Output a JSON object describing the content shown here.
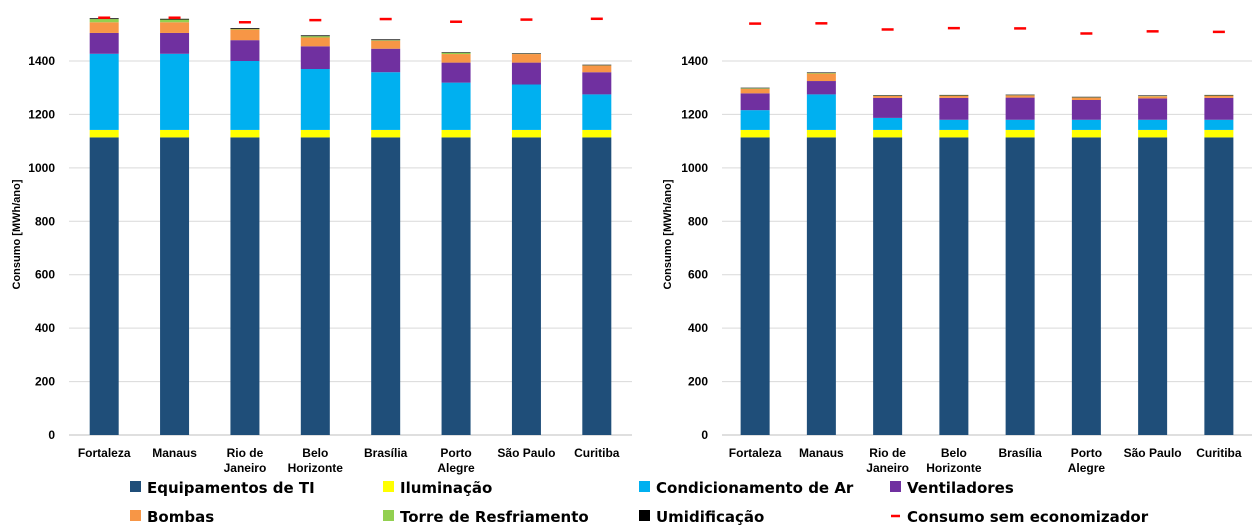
{
  "chart_data": [
    {
      "type": "bar",
      "stacked": true,
      "ylabel": "Consumo [MWh/ano]",
      "ylim": [
        0,
        1500
      ],
      "yticks": [
        0,
        200,
        400,
        600,
        800,
        1000,
        1200,
        1400
      ],
      "grid": true,
      "categories": [
        [
          "Fortaleza"
        ],
        [
          "Manaus"
        ],
        [
          "Rio de",
          "Janeiro"
        ],
        [
          "Belo",
          "Horizonte"
        ],
        [
          "Brasília"
        ],
        [
          "Porto",
          "Alegre"
        ],
        [
          "São Paulo"
        ],
        [
          "Curitiba"
        ]
      ],
      "series": [
        {
          "name": "Equipamentos de TI",
          "values": [
            1114,
            1114,
            1114,
            1114,
            1114,
            1114,
            1114,
            1114
          ]
        },
        {
          "name": "Iluminação",
          "values": [
            28,
            28,
            28,
            28,
            28,
            28,
            28,
            28
          ]
        },
        {
          "name": "Condicionamento de Ar",
          "values": [
            285,
            285,
            258,
            228,
            216,
            177,
            170,
            133
          ]
        },
        {
          "name": "Ventiladores",
          "values": [
            78,
            78,
            78,
            85,
            88,
            75,
            82,
            83
          ]
        },
        {
          "name": "Bombas",
          "values": [
            40,
            40,
            40,
            33,
            30,
            32,
            32,
            25
          ]
        },
        {
          "name": "Torre de Resfriamento",
          "values": [
            12,
            10,
            2,
            5,
            2,
            5,
            1,
            1
          ]
        },
        {
          "name": "Umidificação",
          "values": [
            3,
            3,
            3,
            3,
            3,
            2,
            2,
            2
          ]
        }
      ],
      "line_markers": {
        "name": "Consumo sem economizador",
        "values": [
          1562,
          1562,
          1545,
          1553,
          1557,
          1547,
          1555,
          1558
        ]
      }
    },
    {
      "type": "bar",
      "stacked": true,
      "ylabel": "Consumo [MWh/ano]",
      "ylim": [
        0,
        1500
      ],
      "yticks": [
        0,
        200,
        400,
        600,
        800,
        1000,
        1200,
        1400
      ],
      "grid": true,
      "categories": [
        [
          "Fortaleza"
        ],
        [
          "Manaus"
        ],
        [
          "Rio de",
          "Janeiro"
        ],
        [
          "Belo",
          "Horizonte"
        ],
        [
          "Brasília"
        ],
        [
          "Porto",
          "Alegre"
        ],
        [
          "São Paulo"
        ],
        [
          "Curitiba"
        ]
      ],
      "series": [
        {
          "name": "Equipamentos de TI",
          "values": [
            1114,
            1114,
            1114,
            1114,
            1114,
            1114,
            1114,
            1114
          ]
        },
        {
          "name": "Iluminação",
          "values": [
            28,
            28,
            28,
            28,
            28,
            28,
            28,
            28
          ]
        },
        {
          "name": "Condicionamento de Ar",
          "values": [
            74,
            133,
            45,
            38,
            38,
            38,
            38,
            38
          ]
        },
        {
          "name": "Ventiladores",
          "values": [
            63,
            50,
            75,
            82,
            83,
            74,
            80,
            82
          ]
        },
        {
          "name": "Bombas",
          "values": [
            17,
            28,
            7,
            8,
            8,
            9,
            8,
            8
          ]
        },
        {
          "name": "Torre de Resfriamento",
          "values": [
            2,
            2,
            1,
            1,
            1,
            1,
            1,
            1
          ]
        },
        {
          "name": "Umidificação",
          "values": [
            2,
            2,
            2,
            2,
            2,
            2,
            2,
            2
          ]
        }
      ],
      "line_markers": {
        "name": "Consumo sem economizador",
        "values": [
          1540,
          1541,
          1518,
          1523,
          1522,
          1503,
          1511,
          1509
        ]
      }
    }
  ],
  "colors": {
    "Equipamentos de TI": "#1f4e79",
    "Iluminação": "#ffff00",
    "Condicionamento de Ar": "#00b0f0",
    "Ventiladores": "#7030a0",
    "Bombas": "#f79646",
    "Torre de Resfriamento": "#92d050",
    "Umidificação": "#000000",
    "Consumo sem economizador": "#ff0000"
  },
  "legend": {
    "placement": "bottom",
    "items": [
      {
        "label": "Equipamentos de TI",
        "icon": "square"
      },
      {
        "label": "Iluminação",
        "icon": "square"
      },
      {
        "label": "Condicionamento de Ar",
        "icon": "square"
      },
      {
        "label": "Ventiladores",
        "icon": "square"
      },
      {
        "label": "Bombas",
        "icon": "square"
      },
      {
        "label": "Torre de Resfriamento",
        "icon": "square"
      },
      {
        "label": "Umidificação",
        "icon": "square"
      },
      {
        "label": "Consumo sem economizador",
        "icon": "dash"
      }
    ]
  }
}
